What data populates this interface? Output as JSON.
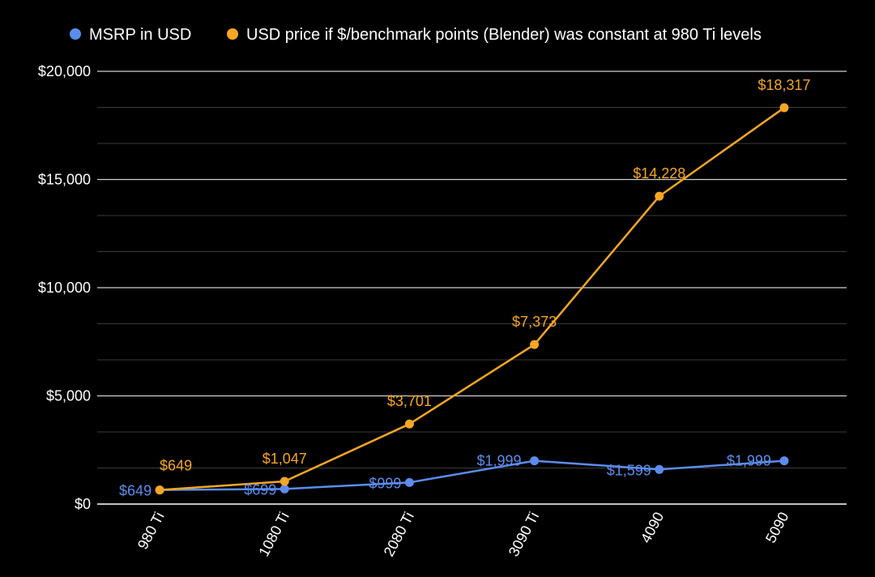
{
  "chart_data": {
    "type": "line",
    "categories": [
      "980 Ti",
      "1080 Ti",
      "2080 Ti",
      "3090 Ti",
      "4090",
      "5090"
    ],
    "series": [
      {
        "name": "MSRP in USD",
        "color": "#5b8def",
        "values": [
          649,
          699,
          999,
          1999,
          1599,
          1999
        ],
        "labels": [
          "$649",
          "$699",
          "$999",
          "$1,999",
          "$1,599",
          "$1,999"
        ]
      },
      {
        "name": "USD price if $/benchmark points (Blender) was constant at 980 Ti levels",
        "color": "#f5a623",
        "values": [
          649,
          1047,
          3701,
          7373,
          14228,
          18317
        ],
        "labels": [
          "$649",
          "$1,047",
          "$3,701",
          "$7,373",
          "$14,228",
          "$18,317"
        ]
      }
    ],
    "yticks": [
      0,
      5000,
      10000,
      15000,
      20000
    ],
    "ytick_labels": [
      "$0",
      "$5,000",
      "$10,000",
      "$15,000",
      "$20,000"
    ],
    "ylim": [
      0,
      20000
    ],
    "grid": true,
    "legend_position": "top",
    "background": "#000000"
  }
}
